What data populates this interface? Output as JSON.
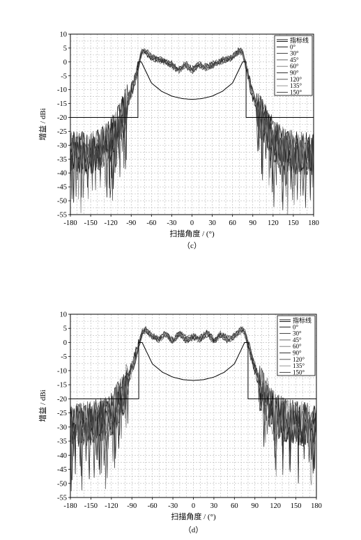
{
  "chart_data": [
    {
      "type": "line",
      "panel": "c",
      "caption": "（c）",
      "xlabel": "扫描角度 / (°)",
      "ylabel": "增益 / dBi",
      "xlim": [
        -180,
        180
      ],
      "ylim": [
        -55,
        10
      ],
      "xticks": [
        -180,
        -150,
        -120,
        -90,
        -60,
        -30,
        0,
        30,
        60,
        90,
        120,
        150,
        180
      ],
      "yticks": [
        10,
        5,
        0,
        -5,
        -10,
        -15,
        -20,
        -25,
        -30,
        -35,
        -40,
        -45,
        -50,
        -55
      ],
      "grid": true,
      "legend_position": "top-right",
      "legend": [
        "指标线",
        "0°",
        "30°",
        "45°",
        "60°",
        "90°",
        "120°",
        "135°",
        "150°"
      ],
      "mask": {
        "name": "指标线",
        "x": [
          -180,
          -80,
          -80,
          -75,
          -60,
          -45,
          -30,
          -15,
          0,
          15,
          30,
          45,
          60,
          75,
          80,
          80,
          180
        ],
        "y": [
          -20,
          -20,
          0,
          0,
          -7.6,
          -10.6,
          -12.3,
          -13.2,
          -13.5,
          -13.2,
          -12.3,
          -10.6,
          -7.6,
          0,
          0,
          -20,
          -20
        ]
      },
      "gain_profile": {
        "x": [
          -180,
          -160,
          -140,
          -120,
          -100,
          -90,
          -80,
          -75,
          -70,
          -60,
          -45,
          -30,
          -20,
          -10,
          0,
          10,
          20,
          30,
          45,
          60,
          70,
          75,
          80,
          90,
          100,
          120,
          140,
          160,
          180
        ],
        "y": [
          -33,
          -33,
          -32,
          -28,
          -18,
          -11,
          -2,
          3.5,
          4.2,
          1.5,
          0.5,
          -1,
          -3,
          -1,
          -3,
          -1,
          -2,
          -1,
          0.5,
          1.5,
          4,
          3.5,
          -2,
          -12,
          -19,
          -28,
          -32,
          -33,
          -33
        ]
      },
      "series": [
        {
          "name": "0°",
          "color": "#000000"
        },
        {
          "name": "30°",
          "color": "#2a2a2a"
        },
        {
          "name": "45°",
          "color": "#555555"
        },
        {
          "name": "60°",
          "color": "#777777"
        },
        {
          "name": "90°",
          "color": "#1a1a1a"
        },
        {
          "name": "120°",
          "color": "#444444"
        },
        {
          "name": "135°",
          "color": "#888888"
        },
        {
          "name": "150°",
          "color": "#333333"
        }
      ]
    },
    {
      "type": "line",
      "panel": "d",
      "caption": "（d）",
      "xlabel": "扫描角度 / (°)",
      "ylabel": "增益 / dBi",
      "xlim": [
        -180,
        180
      ],
      "ylim": [
        -55,
        10
      ],
      "xticks": [
        -180,
        -150,
        -120,
        -90,
        -60,
        -30,
        0,
        30,
        60,
        90,
        120,
        150,
        180
      ],
      "yticks": [
        10,
        5,
        0,
        -5,
        -10,
        -15,
        -20,
        -25,
        -30,
        -35,
        -40,
        -45,
        -50,
        -55
      ],
      "grid": true,
      "legend_position": "top-right",
      "legend": [
        "指标线",
        "0°",
        "30°",
        "45°",
        "60°",
        "90°",
        "120°",
        "135°",
        "150°"
      ],
      "mask": {
        "name": "指标线",
        "x": [
          -180,
          -80,
          -80,
          -75,
          -60,
          -45,
          -30,
          -15,
          0,
          15,
          30,
          45,
          60,
          75,
          80,
          80,
          180
        ],
        "y": [
          -20,
          -20,
          0,
          0,
          -7.6,
          -10.6,
          -12.3,
          -13.2,
          -13.5,
          -13.2,
          -12.3,
          -10.6,
          -7.6,
          0,
          0,
          -20,
          -20
        ]
      },
      "gain_profile": {
        "x": [
          -180,
          -160,
          -140,
          -120,
          -100,
          -90,
          -80,
          -75,
          -70,
          -60,
          -50,
          -40,
          -30,
          -20,
          -10,
          0,
          10,
          20,
          30,
          40,
          50,
          60,
          70,
          75,
          80,
          90,
          100,
          120,
          140,
          160,
          180
        ],
        "y": [
          -30,
          -29,
          -28,
          -26,
          -17,
          -9,
          -1,
          3.5,
          4.5,
          2,
          1,
          3,
          0.5,
          3.5,
          1,
          2,
          1,
          3.5,
          0.5,
          3,
          1,
          2,
          4.5,
          3.5,
          -1,
          -9,
          -17,
          -26,
          -28,
          -29,
          -30
        ]
      },
      "series": [
        {
          "name": "0°",
          "color": "#000000"
        },
        {
          "name": "30°",
          "color": "#2a2a2a"
        },
        {
          "name": "45°",
          "color": "#555555"
        },
        {
          "name": "60°",
          "color": "#777777"
        },
        {
          "name": "90°",
          "color": "#1a1a1a"
        },
        {
          "name": "120°",
          "color": "#444444"
        },
        {
          "name": "135°",
          "color": "#888888"
        },
        {
          "name": "150°",
          "color": "#333333"
        }
      ]
    }
  ]
}
